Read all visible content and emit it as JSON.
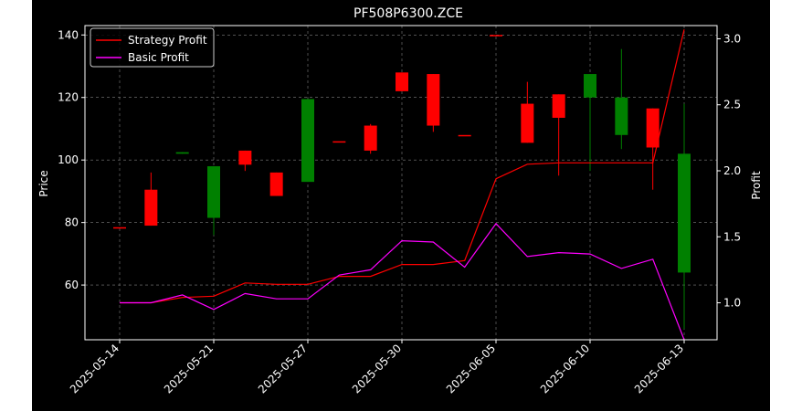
{
  "chart_data": {
    "type": "candlestick",
    "title": "PF508P6300.ZCE",
    "left_axis_label": "Price",
    "right_axis_label": "Profit",
    "x_tick_labels": [
      "2025-05-14",
      "2025-05-21",
      "2025-05-27",
      "2025-05-30",
      "2025-06-05",
      "2025-06-10",
      "2025-06-13"
    ],
    "y_left_ticks": [
      60,
      80,
      100,
      120,
      140
    ],
    "y_left_range": [
      42.5,
      143
    ],
    "y_right_ticks": [
      1.0,
      1.5,
      2.0,
      2.5,
      3.0
    ],
    "y_right_range": [
      0.72,
      3.1
    ],
    "candles": [
      {
        "open": 78.5,
        "high": 78.5,
        "low": 78.5,
        "close": 78.5,
        "color": "#ff0000"
      },
      {
        "open": 90.5,
        "high": 96.0,
        "low": 79.0,
        "close": 79.0,
        "color": "#ff0000"
      },
      {
        "open": 102.0,
        "high": 102.5,
        "low": 102.0,
        "close": 102.5,
        "color": "#008000"
      },
      {
        "open": 81.5,
        "high": 98.0,
        "low": 76.0,
        "close": 98.0,
        "color": "#008000"
      },
      {
        "open": 103.0,
        "high": 103.0,
        "low": 96.5,
        "close": 98.5,
        "color": "#ff0000"
      },
      {
        "open": 96.0,
        "high": 96.0,
        "low": 88.5,
        "close": 88.5,
        "color": "#ff0000"
      },
      {
        "open": 93.0,
        "high": 119.5,
        "low": 93.0,
        "close": 119.5,
        "color": "#008000"
      },
      {
        "open": 106.0,
        "high": 106.0,
        "low": 106.0,
        "close": 106.0,
        "color": "#ff0000"
      },
      {
        "open": 111.0,
        "high": 111.5,
        "low": 102.0,
        "close": 103.0,
        "color": "#ff0000"
      },
      {
        "open": 128.0,
        "high": 128.0,
        "low": 122.0,
        "close": 122.0,
        "color": "#ff0000"
      },
      {
        "open": 127.5,
        "high": 127.5,
        "low": 109.0,
        "close": 111.0,
        "color": "#ff0000"
      },
      {
        "open": 108.0,
        "high": 108.0,
        "low": 108.0,
        "close": 108.0,
        "color": "#ff0000"
      },
      {
        "open": 140.0,
        "high": 140.0,
        "low": 140.0,
        "close": 140.0,
        "color": "#ff0000"
      },
      {
        "open": 118.0,
        "high": 125.0,
        "low": 105.5,
        "close": 105.5,
        "color": "#ff0000"
      },
      {
        "open": 121.0,
        "high": 121.0,
        "low": 95.0,
        "close": 113.5,
        "color": "#ff0000"
      },
      {
        "open": 120.0,
        "high": 127.5,
        "low": 96.5,
        "close": 127.5,
        "color": "#008000"
      },
      {
        "open": 108.0,
        "high": 135.5,
        "low": 103.5,
        "close": 120.0,
        "color": "#008000"
      },
      {
        "open": 116.5,
        "high": 116.5,
        "low": 90.5,
        "close": 104.0,
        "color": "#ff0000"
      },
      {
        "open": 64.0,
        "high": 118.0,
        "low": 46.0,
        "close": 102.0,
        "color": "#008000"
      }
    ],
    "series": [
      {
        "name": "Strategy Profit",
        "color": "#ff0000",
        "values": [
          1.0,
          1.0,
          1.04,
          1.05,
          1.15,
          1.14,
          1.14,
          1.2,
          1.2,
          1.29,
          1.29,
          1.32,
          1.94,
          2.05,
          2.06,
          2.06,
          2.06,
          2.06,
          3.07
        ]
      },
      {
        "name": "Basic Profit",
        "color": "#ff00ff",
        "values": [
          1.0,
          1.0,
          1.06,
          0.95,
          1.07,
          1.03,
          1.03,
          1.21,
          1.25,
          1.47,
          1.46,
          1.27,
          1.6,
          1.35,
          1.38,
          1.37,
          1.26,
          1.33,
          0.72
        ]
      }
    ],
    "legend": "upper-left",
    "grid": true
  }
}
